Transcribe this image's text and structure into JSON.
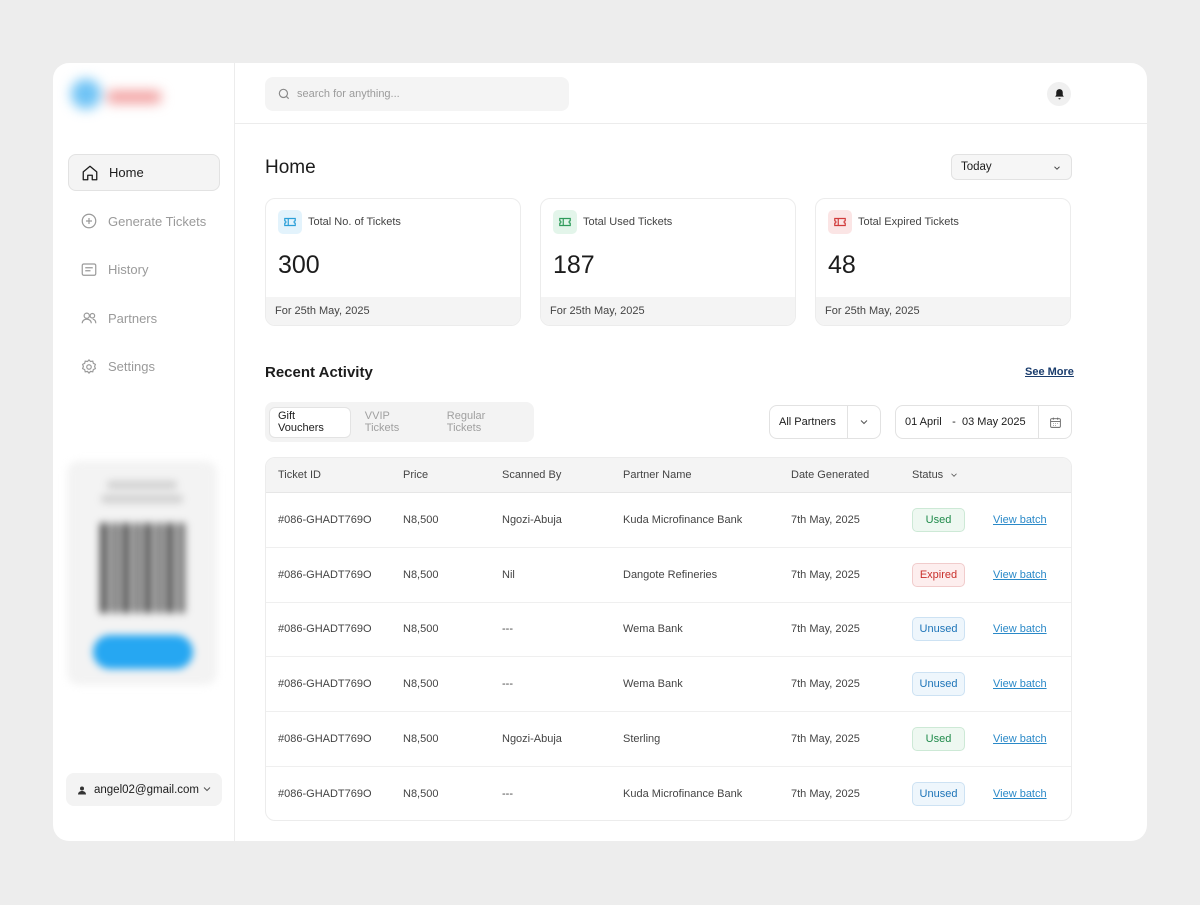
{
  "sidebar": {
    "items": [
      {
        "label": "Home",
        "icon": "home-icon",
        "active": true
      },
      {
        "label": "Generate Tickets",
        "icon": "plus-circle-icon"
      },
      {
        "label": "History",
        "icon": "history-icon"
      },
      {
        "label": "Partners",
        "icon": "users-icon"
      },
      {
        "label": "Settings",
        "icon": "gear-icon"
      }
    ],
    "account_email": "angel02@gmail.com"
  },
  "header": {
    "search_placeholder": "search for anything..."
  },
  "main": {
    "title": "Home",
    "period": "Today",
    "cards": [
      {
        "label": "Total No. of Tickets",
        "value": "300",
        "footer": "For 25th May, 2025",
        "accent": "#2a9fd8",
        "bg": "#e3f3fc"
      },
      {
        "label": "Total Used Tickets",
        "value": "187",
        "footer": "For 25th May, 2025",
        "accent": "#2e9a5a",
        "bg": "#e3f5ea"
      },
      {
        "label": "Total Expired Tickets",
        "value": "48",
        "footer": "For 25th May, 2025",
        "accent": "#d13b3b",
        "bg": "#fbe5e5"
      }
    ],
    "recent": {
      "title": "Recent Activity",
      "see_more": "See More",
      "tabs": [
        "Gift Vouchers",
        "VVIP Tickets",
        "Regular Tickets"
      ],
      "partner_filter": "All Partners",
      "date_from": "01 April",
      "date_separator": "-",
      "date_to": "03 May 2025",
      "columns": [
        "Ticket ID",
        "Price",
        "Scanned By",
        "Partner Name",
        "Date Generated",
        "Status"
      ],
      "rows": [
        {
          "id": "#086-GHADT769O",
          "price": "N8,500",
          "scanned_by": "Ngozi-Abuja",
          "partner": "Kuda Microfinance Bank",
          "date": "7th May, 2025",
          "status": "Used",
          "action": "View batch"
        },
        {
          "id": "#086-GHADT769O",
          "price": "N8,500",
          "scanned_by": "Nil",
          "partner": "Dangote Refineries",
          "date": "7th May, 2025",
          "status": "Expired",
          "action": "View batch"
        },
        {
          "id": "#086-GHADT769O",
          "price": "N8,500",
          "scanned_by": "---",
          "partner": "Wema Bank",
          "date": "7th May, 2025",
          "status": "Unused",
          "action": "View batch"
        },
        {
          "id": "#086-GHADT769O",
          "price": "N8,500",
          "scanned_by": "---",
          "partner": "Wema Bank",
          "date": "7th May, 2025",
          "status": "Unused",
          "action": "View batch"
        },
        {
          "id": "#086-GHADT769O",
          "price": "N8,500",
          "scanned_by": "Ngozi-Abuja",
          "partner": "Sterling",
          "date": "7th May, 2025",
          "status": "Used",
          "action": "View batch"
        },
        {
          "id": "#086-GHADT769O",
          "price": "N8,500",
          "scanned_by": "---",
          "partner": "Kuda Microfinance Bank",
          "date": "7th May, 2025",
          "status": "Unused",
          "action": "View batch"
        }
      ]
    }
  }
}
